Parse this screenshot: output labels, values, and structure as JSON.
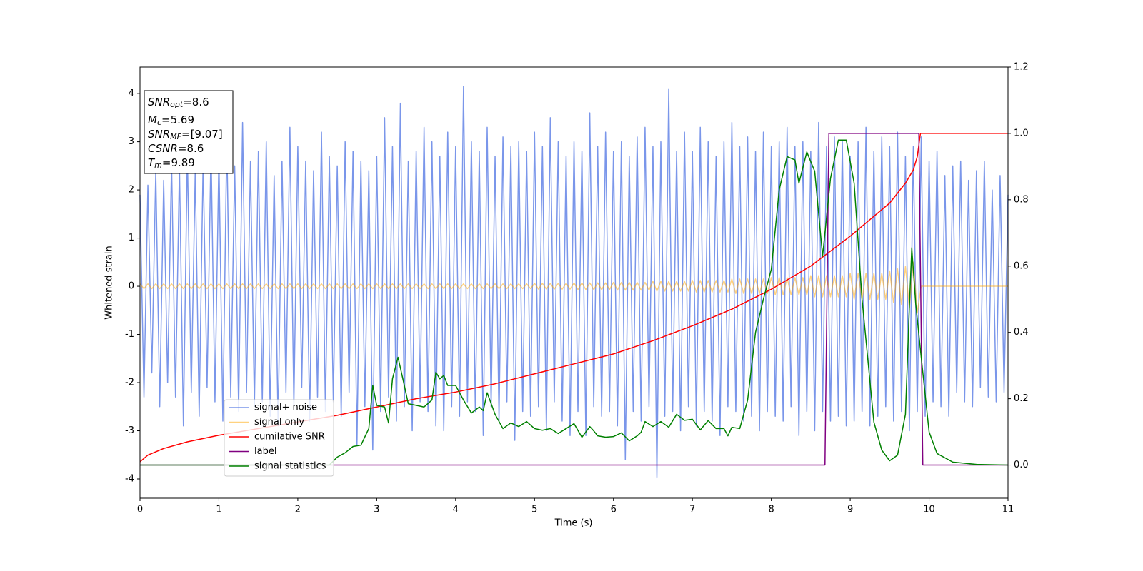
{
  "chart_data": {
    "type": "line",
    "xlabel": "Time (s)",
    "ylabel": "Whitened strain",
    "xlim": [
      0,
      11
    ],
    "xticks": [
      0,
      1,
      2,
      3,
      4,
      5,
      6,
      7,
      8,
      9,
      10,
      11
    ],
    "ylim": [
      -4.4,
      4.55
    ],
    "yticks": [
      -4,
      -3,
      -2,
      -1,
      0,
      1,
      2,
      3,
      4
    ],
    "y2lim": [
      -0.1,
      1.2
    ],
    "y2ticks": [
      {
        "value": 0,
        "label": "0.0"
      },
      {
        "value": 0.2,
        "label": "0.2"
      },
      {
        "value": 0.4,
        "label": "0.4"
      },
      {
        "value": 0.6,
        "label": "0.6"
      },
      {
        "value": 0.8,
        "label": "0.8"
      },
      {
        "value": 1,
        "label": "1.0"
      },
      {
        "value": 1.2,
        "label": "1.2"
      }
    ],
    "annotation": [
      {
        "main": "SNR",
        "sub": "opt",
        "rest": "=8.6"
      },
      {
        "main": "M",
        "sub": "c",
        "rest": "=5.69"
      },
      {
        "main": "SNR",
        "sub": "MF",
        "rest": "=[9.07]"
      },
      {
        "main": "CSNR",
        "rest": "=8.6"
      },
      {
        "main": "T",
        "sub": "m",
        "rest": "=9.89"
      }
    ],
    "x": [
      0,
      0.05,
      0.1,
      0.15,
      0.2,
      0.25,
      0.3,
      0.35,
      0.4,
      0.45,
      0.5,
      0.55,
      0.6,
      0.65,
      0.7,
      0.75,
      0.8,
      0.85,
      0.9,
      0.95,
      1,
      1.05,
      1.1,
      1.15,
      1.2,
      1.25,
      1.3,
      1.35,
      1.4,
      1.45,
      1.5,
      1.55,
      1.6,
      1.65,
      1.7,
      1.75,
      1.8,
      1.85,
      1.9,
      1.95,
      2,
      2.05,
      2.1,
      2.15,
      2.2,
      2.25,
      2.3,
      2.35,
      2.4,
      2.45,
      2.5,
      2.55,
      2.6,
      2.65,
      2.7,
      2.75,
      2.8,
      2.85,
      2.9,
      2.95,
      3,
      3.05,
      3.1,
      3.15,
      3.2,
      3.25,
      3.3,
      3.35,
      3.4,
      3.45,
      3.5,
      3.55,
      3.6,
      3.65,
      3.7,
      3.75,
      3.8,
      3.85,
      3.9,
      3.95,
      4,
      4.05,
      4.1,
      4.15,
      4.2,
      4.25,
      4.3,
      4.35,
      4.4,
      4.45,
      4.5,
      4.55,
      4.6,
      4.65,
      4.7,
      4.75,
      4.8,
      4.85,
      4.9,
      4.95,
      5,
      5.05,
      5.1,
      5.15,
      5.2,
      5.25,
      5.3,
      5.35,
      5.4,
      5.45,
      5.5,
      5.55,
      5.6,
      5.65,
      5.7,
      5.75,
      5.8,
      5.85,
      5.9,
      5.95,
      6,
      6.05,
      6.1,
      6.15,
      6.2,
      6.25,
      6.3,
      6.35,
      6.4,
      6.45,
      6.5,
      6.55,
      6.6,
      6.65,
      6.7,
      6.75,
      6.8,
      6.85,
      6.9,
      6.95,
      7,
      7.05,
      7.1,
      7.15,
      7.2,
      7.25,
      7.3,
      7.35,
      7.4,
      7.45,
      7.5,
      7.55,
      7.6,
      7.65,
      7.7,
      7.75,
      7.8,
      7.85,
      7.9,
      7.95,
      8,
      8.05,
      8.1,
      8.15,
      8.2,
      8.25,
      8.3,
      8.35,
      8.4,
      8.45,
      8.5,
      8.55,
      8.6,
      8.65,
      8.7,
      8.75,
      8.8,
      8.85,
      8.9,
      8.95,
      9,
      9.05,
      9.1,
      9.15,
      9.2,
      9.25,
      9.3,
      9.35,
      9.4,
      9.45,
      9.5,
      9.55,
      9.6,
      9.65,
      9.7,
      9.75,
      9.8,
      9.85,
      9.9,
      9.95,
      10,
      10.05,
      10.1,
      10.15,
      10.2,
      10.25,
      10.3,
      10.35,
      10.4,
      10.45,
      10.5,
      10.55,
      10.6,
      10.65,
      10.7,
      10.75,
      10.8,
      10.85,
      10.9,
      10.95,
      11
    ],
    "series": [
      {
        "name": "signal+ noise",
        "color": "royalblue",
        "alpha": 0.7,
        "values": [
          1.9,
          -2.3,
          2.1,
          -1.8,
          2.4,
          -2.5,
          2.2,
          -2.0,
          2.6,
          -2.3,
          2.5,
          -2.9,
          2.8,
          -2.2,
          2.4,
          -2.7,
          2.6,
          -2.1,
          2.9,
          -2.4,
          2.7,
          -2.8,
          3.1,
          -2.3,
          2.5,
          -2.6,
          3.4,
          -2.2,
          2.6,
          -2.5,
          2.8,
          -2.4,
          3.0,
          -2.7,
          2.3,
          -2.9,
          2.6,
          -2.2,
          3.3,
          -2.5,
          2.9,
          -2.1,
          2.6,
          -2.8,
          2.4,
          -2.3,
          3.2,
          -2.6,
          2.7,
          -2.4,
          2.5,
          -2.7,
          3.0,
          -2.2,
          2.8,
          -3.3,
          2.6,
          -2.5,
          2.4,
          -3.4,
          2.7,
          -2.6,
          3.5,
          -2.3,
          2.9,
          -2.8,
          3.8,
          -2.5,
          2.6,
          -3.0,
          2.8,
          -2.4,
          3.3,
          -2.6,
          3.0,
          -2.9,
          2.7,
          -3.0,
          3.2,
          -2.5,
          2.9,
          -2.7,
          4.15,
          -2.4,
          3.0,
          -2.6,
          2.8,
          -3.1,
          3.3,
          -2.5,
          2.7,
          -2.8,
          3.1,
          -2.4,
          2.9,
          -3.2,
          3.0,
          -2.6,
          2.8,
          -2.7,
          3.2,
          -2.5,
          2.9,
          -3.0,
          3.5,
          -2.4,
          3.0,
          -2.8,
          2.7,
          -3.1,
          3.0,
          -2.6,
          2.8,
          -3.1,
          3.6,
          -2.5,
          2.9,
          -2.7,
          3.2,
          -2.6,
          2.8,
          -2.9,
          3.0,
          -3.6,
          2.7,
          -2.6,
          3.1,
          -2.8,
          3.3,
          -2.5,
          2.9,
          -3.98,
          3.0,
          -2.7,
          4.1,
          -2.6,
          2.8,
          -3.0,
          3.2,
          -2.5,
          2.8,
          -2.9,
          3.3,
          -2.6,
          3.0,
          -2.8,
          2.7,
          -3.1,
          3.0,
          -2.5,
          3.4,
          -2.6,
          2.9,
          -2.8,
          3.1,
          -2.7,
          2.8,
          -3.0,
          3.2,
          -2.6,
          2.9,
          -2.7,
          3.0,
          -2.8,
          3.3,
          -2.5,
          2.9,
          -3.1,
          3.0,
          -2.6,
          2.8,
          -3.0,
          3.4,
          -2.6,
          2.9,
          -2.8,
          3.1,
          -2.7,
          3.0,
          -2.9,
          2.7,
          -2.8,
          3.0,
          -2.6,
          3.3,
          -2.9,
          2.8,
          -2.7,
          3.1,
          -2.5,
          2.9,
          -2.8,
          3.2,
          -2.6,
          2.7,
          -3.0,
          2.9,
          -2.6,
          3.1,
          -2.7,
          2.6,
          -2.4,
          2.8,
          -2.5,
          2.3,
          -2.7,
          2.5,
          -2.2,
          2.6,
          -2.4,
          2.2,
          -2.5,
          2.4,
          -2.1,
          2.6,
          -2.3,
          2.0,
          -2.4,
          2.3,
          -2.2,
          1.9
        ]
      },
      {
        "name": "signal only",
        "color": "orange",
        "alpha": 0.5,
        "values": [
          0.05,
          -0.05,
          0.05,
          -0.05,
          0.05,
          -0.05,
          0.05,
          -0.05,
          0.05,
          -0.05,
          0.05,
          -0.05,
          0.05,
          -0.05,
          0.05,
          -0.05,
          0.05,
          -0.05,
          0.05,
          -0.05,
          0.05,
          -0.05,
          0.05,
          -0.05,
          0.05,
          -0.05,
          0.05,
          -0.05,
          0.05,
          -0.05,
          0.05,
          -0.05,
          0.05,
          -0.05,
          0.05,
          -0.05,
          0.05,
          -0.05,
          0.05,
          -0.05,
          0.05,
          -0.05,
          0.05,
          -0.05,
          0.05,
          -0.05,
          0.05,
          -0.05,
          0.05,
          -0.05,
          0.05,
          -0.05,
          0.05,
          -0.05,
          0.05,
          -0.05,
          0.05,
          -0.05,
          0.05,
          -0.05,
          0.05,
          -0.05,
          0.05,
          -0.05,
          0.05,
          -0.05,
          0.05,
          -0.05,
          0.05,
          -0.05,
          0.05,
          -0.05,
          0.05,
          -0.05,
          0.05,
          -0.05,
          0.05,
          -0.05,
          0.05,
          -0.05,
          0.05,
          -0.05,
          0.05,
          -0.05,
          0.05,
          -0.05,
          0.05,
          -0.05,
          0.05,
          -0.05,
          0.05,
          -0.05,
          0.05,
          -0.05,
          0.05,
          -0.05,
          0.05,
          -0.05,
          0.05,
          -0.05,
          0.06,
          -0.06,
          0.06,
          -0.06,
          0.06,
          -0.06,
          0.06,
          -0.06,
          0.06,
          -0.06,
          0.07,
          -0.07,
          0.07,
          -0.07,
          0.07,
          -0.07,
          0.07,
          -0.07,
          0.07,
          -0.07,
          0.08,
          -0.08,
          0.08,
          -0.08,
          0.08,
          -0.08,
          0.08,
          -0.08,
          0.08,
          -0.08,
          0.1,
          -0.1,
          0.1,
          -0.1,
          0.1,
          -0.1,
          0.1,
          -0.1,
          0.1,
          -0.1,
          0.12,
          -0.12,
          0.12,
          -0.12,
          0.12,
          -0.12,
          0.12,
          -0.12,
          0.12,
          -0.12,
          0.15,
          -0.15,
          0.15,
          -0.15,
          0.15,
          -0.15,
          0.15,
          -0.15,
          0.15,
          -0.15,
          0.18,
          -0.18,
          0.18,
          -0.18,
          0.18,
          -0.18,
          0.18,
          -0.18,
          0.18,
          -0.18,
          0.22,
          -0.22,
          0.22,
          -0.22,
          0.22,
          -0.22,
          0.22,
          -0.22,
          0.22,
          -0.22,
          0.27,
          -0.27,
          0.27,
          -0.27,
          0.27,
          -0.27,
          0.27,
          -0.27,
          0.27,
          -0.27,
          0.32,
          -0.34,
          0.36,
          -0.38,
          0.41,
          -0.45,
          0.5,
          -0.56,
          0,
          0,
          0,
          0,
          0,
          0,
          0,
          0,
          0,
          0,
          0,
          0,
          0,
          0,
          0,
          0,
          0,
          0,
          0,
          0,
          0,
          0,
          0
        ]
      },
      {
        "name": "cumilative SNR",
        "color": "red",
        "axis": "y2",
        "x": [
          0,
          0.1,
          0.3,
          0.6,
          1,
          1.5,
          2,
          2.5,
          3,
          3.5,
          4,
          4.5,
          5,
          5.5,
          6,
          6.5,
          7,
          7.5,
          8,
          8.5,
          9,
          9.3,
          9.5,
          9.7,
          9.8,
          9.85,
          9.89,
          11
        ],
        "values": [
          0.01,
          0.03,
          0.05,
          0.07,
          0.09,
          0.11,
          0.13,
          0.15,
          0.175,
          0.2,
          0.22,
          0.245,
          0.275,
          0.305,
          0.335,
          0.375,
          0.42,
          0.47,
          0.53,
          0.6,
          0.69,
          0.75,
          0.79,
          0.85,
          0.89,
          0.93,
          1.0,
          1.0
        ]
      },
      {
        "name": "label",
        "color": "purple",
        "axis": "y2",
        "x": [
          0,
          8.68,
          8.73,
          9.87,
          9.92,
          11
        ],
        "values": [
          0,
          0,
          1,
          1,
          0,
          0
        ]
      },
      {
        "name": "signal statistics",
        "color": "green",
        "axis": "y2",
        "x": [
          0,
          2.4,
          2.5,
          2.6,
          2.7,
          2.8,
          2.9,
          2.95,
          3.0,
          3.1,
          3.15,
          3.2,
          3.27,
          3.35,
          3.4,
          3.5,
          3.6,
          3.7,
          3.75,
          3.8,
          3.85,
          3.9,
          4.0,
          4.1,
          4.2,
          4.3,
          4.35,
          4.4,
          4.5,
          4.6,
          4.7,
          4.8,
          4.9,
          5.0,
          5.1,
          5.2,
          5.3,
          5.4,
          5.5,
          5.6,
          5.7,
          5.75,
          5.8,
          5.9,
          6.0,
          6.1,
          6.2,
          6.3,
          6.35,
          6.4,
          6.5,
          6.6,
          6.7,
          6.8,
          6.9,
          7.0,
          7.1,
          7.2,
          7.3,
          7.4,
          7.45,
          7.5,
          7.6,
          7.7,
          7.8,
          7.9,
          8.0,
          8.1,
          8.2,
          8.3,
          8.35,
          8.45,
          8.55,
          8.65,
          8.75,
          8.85,
          8.95,
          9.05,
          9.15,
          9.3,
          9.4,
          9.5,
          9.6,
          9.7,
          9.75,
          9.78,
          9.83,
          9.9,
          10.0,
          10.1,
          10.3,
          10.6,
          11
        ],
        "values": [
          0,
          0,
          0.024,
          0.037,
          0.056,
          0.06,
          0.11,
          0.24,
          0.18,
          0.175,
          0.127,
          0.26,
          0.325,
          0.24,
          0.185,
          0.18,
          0.175,
          0.196,
          0.28,
          0.26,
          0.27,
          0.24,
          0.24,
          0.196,
          0.157,
          0.175,
          0.164,
          0.218,
          0.153,
          0.11,
          0.127,
          0.116,
          0.131,
          0.11,
          0.105,
          0.11,
          0.095,
          0.11,
          0.125,
          0.084,
          0.116,
          0.103,
          0.088,
          0.084,
          0.086,
          0.097,
          0.073,
          0.088,
          0.099,
          0.131,
          0.116,
          0.131,
          0.114,
          0.153,
          0.135,
          0.138,
          0.106,
          0.134,
          0.11,
          0.11,
          0.088,
          0.114,
          0.11,
          0.196,
          0.4,
          0.5,
          0.59,
          0.83,
          0.93,
          0.92,
          0.85,
          0.944,
          0.886,
          0.63,
          0.864,
          0.98,
          0.98,
          0.85,
          0.5,
          0.13,
          0.045,
          0.013,
          0.03,
          0.153,
          0.476,
          0.655,
          0.487,
          0.325,
          0.1,
          0.035,
          0.009,
          0.002,
          0
        ]
      }
    ]
  }
}
